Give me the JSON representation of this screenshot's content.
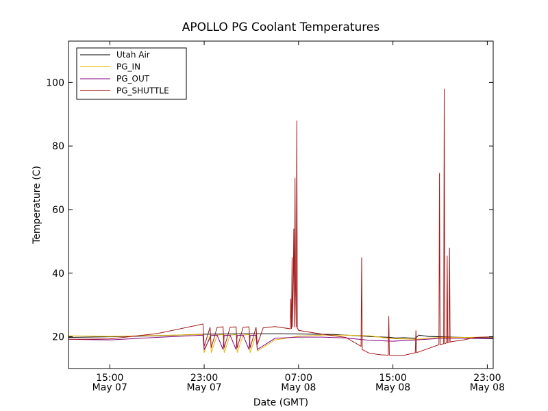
{
  "chart_data": {
    "type": "line",
    "title": "APOLLO PG Coolant Temperatures",
    "xlabel": "Date (GMT)",
    "ylabel": "Temperature (C)",
    "xlim": [
      11.5,
      47.5
    ],
    "ylim": [
      10,
      113
    ],
    "grid": false,
    "legend_position": "top-left",
    "x_ticks": [
      {
        "value": 15,
        "line1": "15:00",
        "line2": "May 07"
      },
      {
        "value": 23,
        "line1": "23:00",
        "line2": "May 07"
      },
      {
        "value": 31,
        "line1": "07:00",
        "line2": "May 08"
      },
      {
        "value": 39,
        "line1": "15:00",
        "line2": "May 08"
      },
      {
        "value": 47,
        "line1": "23:00",
        "line2": "May 08"
      }
    ],
    "y_ticks": [
      20,
      40,
      60,
      80,
      100
    ],
    "series": [
      {
        "name": "Utah Air",
        "color": "#000000",
        "x": [
          11.5,
          15,
          19,
          23,
          26,
          30,
          34,
          37.5,
          38.8,
          39.2,
          40,
          40.9,
          41.2,
          42,
          44,
          47.5
        ],
        "y": [
          19.8,
          20.0,
          20.3,
          20.8,
          20.9,
          20.9,
          20.7,
          20.0,
          19.8,
          19.6,
          19.7,
          19.5,
          20.5,
          20.1,
          19.9,
          19.6
        ]
      },
      {
        "name": "PG_IN",
        "color": "#e6b800",
        "x": [
          11.5,
          15,
          19,
          22.9,
          23,
          23.5,
          23.6,
          24.1,
          24.6,
          24.7,
          25.2,
          25.7,
          25.8,
          26.3,
          26.8,
          26.9,
          27.4,
          27.5,
          29,
          31,
          33,
          35,
          37,
          38,
          39,
          41,
          43,
          45,
          47.5
        ],
        "y": [
          20.3,
          20.1,
          20.4,
          20.7,
          15.0,
          20.5,
          15.0,
          20.5,
          20.7,
          15.0,
          20.5,
          20.7,
          15.0,
          20.5,
          20.7,
          15.0,
          20.5,
          15.5,
          19.0,
          20.2,
          20.5,
          20.5,
          20.3,
          19.8,
          19.4,
          19.2,
          19.8,
          19.8,
          19.9
        ]
      },
      {
        "name": "PG_OUT",
        "color": "#800080",
        "x": [
          11.5,
          15,
          19,
          22.9,
          23,
          23.6,
          24.1,
          24.6,
          24.7,
          25.2,
          25.7,
          25.8,
          26.3,
          26.8,
          26.9,
          27.4,
          27.5,
          29,
          31,
          33,
          35,
          37,
          39,
          41,
          43,
          45,
          47.5
        ],
        "y": [
          19.2,
          19.0,
          19.8,
          20.5,
          16.0,
          20.4,
          20.5,
          16.0,
          20.4,
          20.5,
          16.0,
          20.4,
          20.5,
          16.0,
          20.4,
          20.5,
          16.0,
          19.5,
          19.9,
          19.9,
          19.6,
          18.9,
          18.6,
          19.0,
          19.5,
          19.5,
          19.4
        ]
      },
      {
        "name": "PG_SHUTTLE",
        "color": "#a31515",
        "x": [
          11.5,
          15,
          19,
          22.9,
          23,
          23.5,
          23.6,
          24.1,
          24.6,
          24.7,
          25.2,
          25.7,
          25.8,
          26.3,
          26.8,
          26.9,
          27.4,
          27.5,
          28,
          29,
          30.3,
          30.35,
          30.4,
          30.45,
          30.5,
          30.55,
          30.6,
          30.65,
          30.7,
          30.75,
          30.8,
          30.85,
          30.9,
          30.95,
          31,
          33,
          35,
          36.3,
          36.35,
          36.4,
          37,
          38,
          38.6,
          38.65,
          38.7,
          39,
          40,
          40.9,
          40.95,
          41,
          42,
          42.9,
          42.95,
          43,
          43.3,
          43.35,
          43.4,
          43.55,
          43.6,
          43.65,
          43.75,
          43.8,
          43.85,
          44,
          45,
          46,
          47.5
        ],
        "y": [
          19.2,
          19.3,
          21.0,
          24.0,
          17.0,
          23.0,
          16.5,
          23.0,
          23.1,
          16.5,
          23.0,
          23.1,
          16.5,
          23.0,
          23.1,
          16.5,
          23.0,
          17.5,
          22.8,
          23.2,
          22.5,
          32.0,
          22.5,
          45.0,
          23.0,
          36.0,
          54.0,
          23.0,
          70.0,
          35.0,
          23.0,
          88.0,
          22.5,
          22.5,
          22.0,
          20.8,
          19.8,
          17.0,
          45.0,
          16.0,
          14.8,
          14.3,
          14.2,
          26.5,
          14.2,
          14.0,
          14.2,
          15.0,
          22.0,
          15.0,
          16.3,
          17.5,
          71.5,
          17.5,
          17.8,
          98.0,
          17.8,
          18.1,
          45.5,
          18.1,
          18.3,
          48.0,
          18.3,
          18.5,
          19.0,
          19.8,
          20.0
        ]
      }
    ]
  }
}
